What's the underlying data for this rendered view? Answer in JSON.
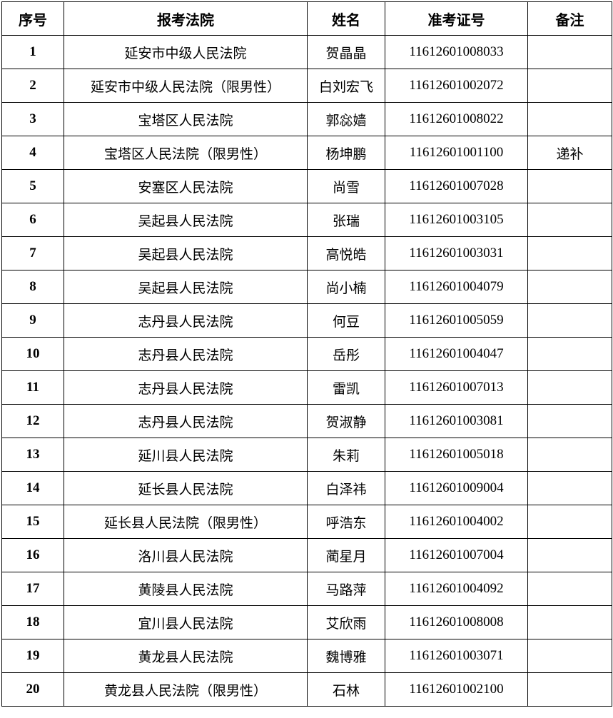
{
  "headers": [
    "序号",
    "报考法院",
    "姓名",
    "准考证号",
    "备注"
  ],
  "rows": [
    {
      "no": "1",
      "court": "延安市中级人民法院",
      "name": "贺晶晶",
      "id": "11612601008033",
      "note": ""
    },
    {
      "no": "2",
      "court": "延安市中级人民法院（限男性）",
      "name": "白刘宏飞",
      "id": "11612601002072",
      "note": ""
    },
    {
      "no": "3",
      "court": "宝塔区人民法院",
      "name": "郭惢嫱",
      "id": "11612601008022",
      "note": ""
    },
    {
      "no": "4",
      "court": "宝塔区人民法院（限男性）",
      "name": "杨坤鹏",
      "id": "11612601001100",
      "note": "递补"
    },
    {
      "no": "5",
      "court": "安塞区人民法院",
      "name": "尚雪",
      "id": "11612601007028",
      "note": ""
    },
    {
      "no": "6",
      "court": "吴起县人民法院",
      "name": "张瑞",
      "id": "11612601003105",
      "note": ""
    },
    {
      "no": "7",
      "court": "吴起县人民法院",
      "name": "高悦皓",
      "id": "11612601003031",
      "note": ""
    },
    {
      "no": "8",
      "court": "吴起县人民法院",
      "name": "尚小楠",
      "id": "11612601004079",
      "note": ""
    },
    {
      "no": "9",
      "court": "志丹县人民法院",
      "name": "何豆",
      "id": "11612601005059",
      "note": ""
    },
    {
      "no": "10",
      "court": "志丹县人民法院",
      "name": "岳彤",
      "id": "11612601004047",
      "note": ""
    },
    {
      "no": "11",
      "court": "志丹县人民法院",
      "name": "雷凯",
      "id": "11612601007013",
      "note": ""
    },
    {
      "no": "12",
      "court": "志丹县人民法院",
      "name": "贺淑静",
      "id": "11612601003081",
      "note": ""
    },
    {
      "no": "13",
      "court": "延川县人民法院",
      "name": "朱莉",
      "id": "11612601005018",
      "note": ""
    },
    {
      "no": "14",
      "court": "延长县人民法院",
      "name": "白泽祎",
      "id": "11612601009004",
      "note": ""
    },
    {
      "no": "15",
      "court": "延长县人民法院（限男性）",
      "name": "呼浩东",
      "id": "11612601004002",
      "note": ""
    },
    {
      "no": "16",
      "court": "洛川县人民法院",
      "name": "蔺星月",
      "id": "11612601007004",
      "note": ""
    },
    {
      "no": "17",
      "court": "黄陵县人民法院",
      "name": "马路萍",
      "id": "11612601004092",
      "note": ""
    },
    {
      "no": "18",
      "court": "宜川县人民法院",
      "name": "艾欣雨",
      "id": "11612601008008",
      "note": ""
    },
    {
      "no": "19",
      "court": "黄龙县人民法院",
      "name": "魏博雅",
      "id": "11612601003071",
      "note": ""
    },
    {
      "no": "20",
      "court": "黄龙县人民法院（限男性）",
      "name": "石林",
      "id": "11612601002100",
      "note": ""
    }
  ]
}
